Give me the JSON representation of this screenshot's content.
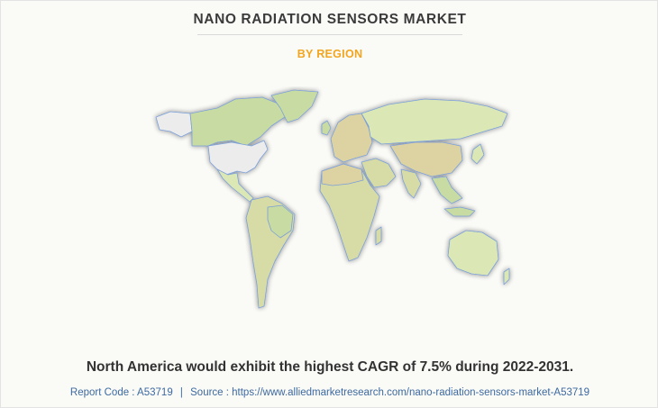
{
  "header": {
    "title": "NANO RADIATION SENSORS MARKET",
    "subtitle": "BY REGION"
  },
  "map": {
    "highlighted_region": "North America",
    "colors": {
      "highlight": "#ececec",
      "green": "#c7dba3",
      "olive": "#d7dba6",
      "tan": "#dcd2a2",
      "lightgreen": "#dbe8b6",
      "border": "#7b9fd9"
    }
  },
  "note": "North America would exhibit the highest CAGR of 7.5% during 2022-2031.",
  "footer": {
    "report_label": "Report Code : A53719",
    "separator": "|",
    "source_label": "Source : https://www.alliedmarketresearch.com/nano-radiation-sensors-market-A53719"
  }
}
